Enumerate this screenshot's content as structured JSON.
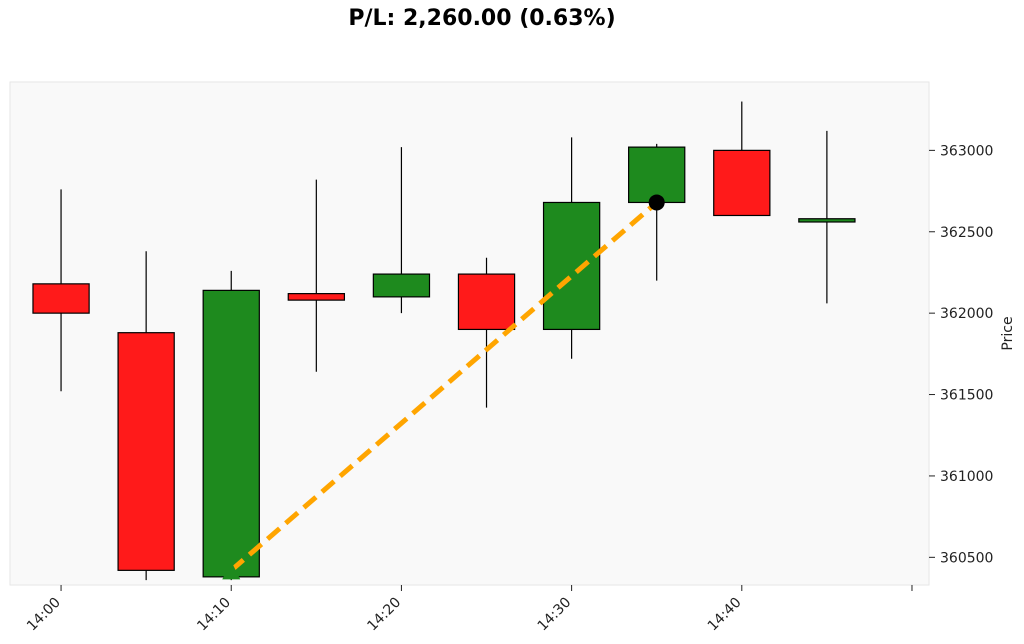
{
  "chart_data": {
    "type": "candlestick",
    "title": "P/L: 2,260.00 (0.63%)",
    "ylabel": "Price",
    "xlabel": "",
    "x_ticks": [
      "14:00",
      "14:10",
      "14:20",
      "14:30",
      "14:40"
    ],
    "y_ticks": [
      360500,
      361000,
      361500,
      362000,
      362500,
      363000
    ],
    "ylim": [
      360330,
      363420
    ],
    "xlim": [
      "13:57",
      "14:51"
    ],
    "up_color": "#1e8a1e",
    "down_color": "#ff1a1a",
    "background": "#f9f9f9",
    "candles": [
      {
        "time": "14:00",
        "open": 362180,
        "high": 362760,
        "low": 361520,
        "close": 362000
      },
      {
        "time": "14:05",
        "open": 361880,
        "high": 362380,
        "low": 360360,
        "close": 360420
      },
      {
        "time": "14:10",
        "open": 360380,
        "high": 362260,
        "low": 360360,
        "close": 362140
      },
      {
        "time": "14:15",
        "open": 362120,
        "high": 362820,
        "low": 361640,
        "close": 362080
      },
      {
        "time": "14:20",
        "open": 362100,
        "high": 363020,
        "low": 362000,
        "close": 362240
      },
      {
        "time": "14:25",
        "open": 362240,
        "high": 362340,
        "low": 361420,
        "close": 361900
      },
      {
        "time": "14:30",
        "open": 361900,
        "high": 363080,
        "low": 361720,
        "close": 362680
      },
      {
        "time": "14:35",
        "open": 362680,
        "high": 363040,
        "low": 362200,
        "close": 363020
      },
      {
        "time": "14:40",
        "open": 363000,
        "high": 363300,
        "low": 362600,
        "close": 362600
      },
      {
        "time": "14:45",
        "open": 362560,
        "high": 363120,
        "low": 362060,
        "close": 362580
      }
    ],
    "trade": {
      "entry": {
        "time": "14:10",
        "price": 360420,
        "marker": "triangle-up",
        "color": "#1e8a1e"
      },
      "exit": {
        "time": "14:35",
        "price": 362680,
        "marker": "circle",
        "color": "#000000"
      },
      "line_color": "#ffa500",
      "line_style": "dashed"
    },
    "grid": false,
    "legend": "none"
  }
}
